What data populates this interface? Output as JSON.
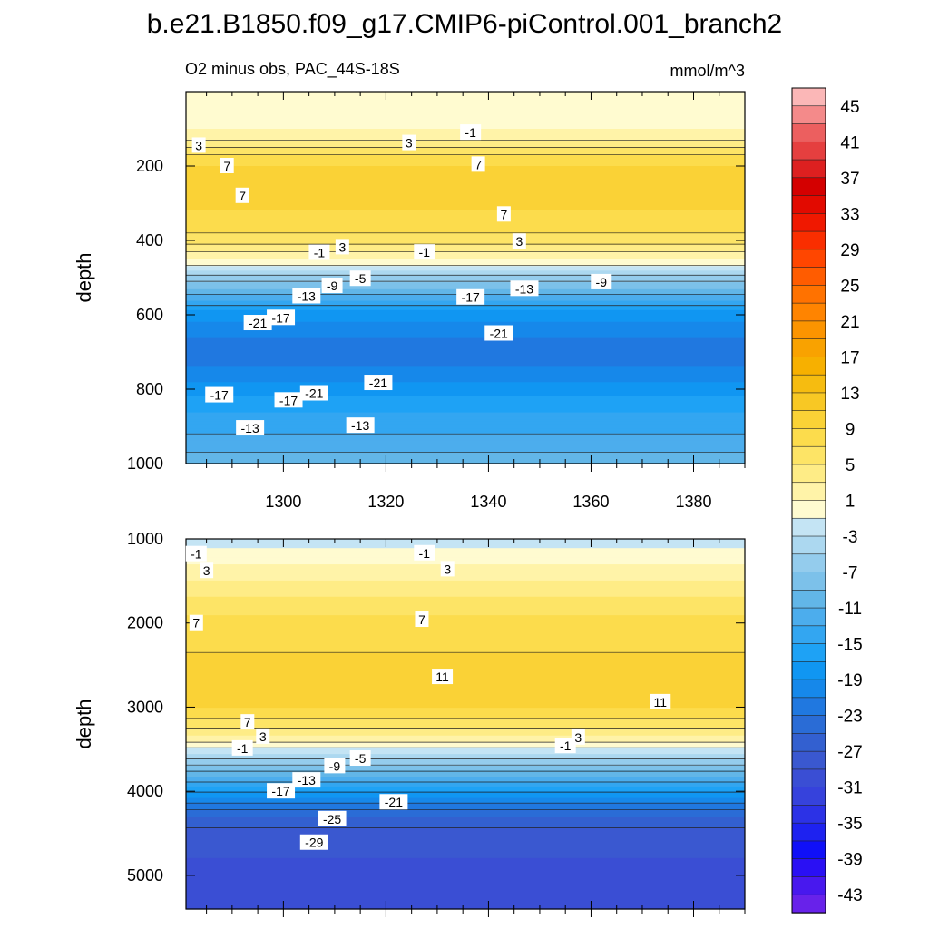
{
  "chart_data": {
    "type": "heatmap",
    "title": "b.e21.B1850.f09_g17.CMIP6-piControl.001_branch2",
    "panels": [
      {
        "name": "upper",
        "subtitle_left": "O2 minus obs, PAC_44S-18S",
        "subtitle_right": "mmol/m^3",
        "ylabel": "depth",
        "xlabel": "",
        "xlim": [
          1281,
          1390
        ],
        "ylim": [
          1000,
          0
        ],
        "x_ticks": [
          1300,
          1320,
          1340,
          1360,
          1380
        ],
        "x_tick_labels": [
          "1300",
          "1320",
          "1340",
          "1360",
          "1380"
        ],
        "y_ticks": [
          200,
          400,
          600,
          800,
          1000
        ],
        "y_tick_labels": [
          "200",
          "400",
          "600",
          "800",
          "1000"
        ],
        "depth_profile": [
          [
            0,
            1
          ],
          [
            60,
            1
          ],
          [
            80,
            -1
          ],
          [
            100,
            1
          ],
          [
            120,
            2
          ],
          [
            140,
            4
          ],
          [
            160,
            6
          ],
          [
            180,
            8
          ],
          [
            200,
            9
          ],
          [
            240,
            10
          ],
          [
            280,
            10
          ],
          [
            320,
            9
          ],
          [
            360,
            8
          ],
          [
            400,
            6
          ],
          [
            420,
            4
          ],
          [
            440,
            2
          ],
          [
            460,
            0
          ],
          [
            480,
            -3
          ],
          [
            500,
            -6
          ],
          [
            530,
            -9
          ],
          [
            560,
            -13
          ],
          [
            590,
            -17
          ],
          [
            620,
            -19
          ],
          [
            660,
            -21
          ],
          [
            700,
            -22
          ],
          [
            740,
            -21
          ],
          [
            780,
            -19
          ],
          [
            820,
            -17
          ],
          [
            860,
            -15
          ],
          [
            900,
            -14
          ],
          [
            940,
            -12
          ],
          [
            1000,
            -10
          ]
        ],
        "contour_labels": [
          {
            "x": 1283.5,
            "y": 145,
            "text": "3"
          },
          {
            "x": 1324.5,
            "y": 138,
            "text": "3"
          },
          {
            "x": 1336.5,
            "y": 110,
            "text": "-1"
          },
          {
            "x": 1289,
            "y": 200,
            "text": "7"
          },
          {
            "x": 1338,
            "y": 196,
            "text": "7"
          },
          {
            "x": 1292,
            "y": 280,
            "text": "7"
          },
          {
            "x": 1343,
            "y": 330,
            "text": "7"
          },
          {
            "x": 1307,
            "y": 433,
            "text": "-1"
          },
          {
            "x": 1311.5,
            "y": 418,
            "text": "3"
          },
          {
            "x": 1327.5,
            "y": 432,
            "text": "-1"
          },
          {
            "x": 1346,
            "y": 403,
            "text": "3"
          },
          {
            "x": 1315,
            "y": 503,
            "text": "-5"
          },
          {
            "x": 1309.5,
            "y": 522,
            "text": "-9"
          },
          {
            "x": 1304.5,
            "y": 550,
            "text": "-13"
          },
          {
            "x": 1299.5,
            "y": 608,
            "text": "-17"
          },
          {
            "x": 1336.5,
            "y": 553,
            "text": "-17"
          },
          {
            "x": 1295,
            "y": 622,
            "text": "-21"
          },
          {
            "x": 1342,
            "y": 650,
            "text": "-21"
          },
          {
            "x": 1306,
            "y": 811,
            "text": "-21"
          },
          {
            "x": 1318.5,
            "y": 783,
            "text": "-21"
          },
          {
            "x": 1287.5,
            "y": 816,
            "text": "-17"
          },
          {
            "x": 1301,
            "y": 830,
            "text": "-17"
          },
          {
            "x": 1293.5,
            "y": 905,
            "text": "-13"
          },
          {
            "x": 1315,
            "y": 898,
            "text": "-13"
          },
          {
            "x": 1347,
            "y": 530,
            "text": "-13"
          },
          {
            "x": 1362,
            "y": 512,
            "text": "-9"
          }
        ]
      },
      {
        "name": "lower",
        "ylabel": "depth",
        "xlim": [
          1281,
          1390
        ],
        "ylim": [
          5400,
          1000
        ],
        "y_ticks": [
          1000,
          2000,
          3000,
          4000,
          5000
        ],
        "y_tick_labels": [
          "1000",
          "2000",
          "3000",
          "4000",
          "5000"
        ],
        "depth_profile": [
          [
            1000,
            -1
          ],
          [
            1100,
            -1
          ],
          [
            1200,
            0
          ],
          [
            1300,
            1
          ],
          [
            1500,
            3
          ],
          [
            1700,
            5
          ],
          [
            1900,
            7
          ],
          [
            2200,
            8
          ],
          [
            2500,
            10
          ],
          [
            2800,
            10
          ],
          [
            3000,
            9
          ],
          [
            3200,
            6
          ],
          [
            3350,
            3
          ],
          [
            3450,
            0
          ],
          [
            3550,
            -3
          ],
          [
            3650,
            -6
          ],
          [
            3800,
            -10
          ],
          [
            3950,
            -15
          ],
          [
            4100,
            -20
          ],
          [
            4300,
            -25
          ],
          [
            4500,
            -28
          ],
          [
            4800,
            -29
          ],
          [
            5100,
            -30
          ],
          [
            5400,
            -31
          ]
        ],
        "contour_labels": [
          {
            "x": 1283,
            "y": 1180,
            "text": "-1"
          },
          {
            "x": 1285,
            "y": 1380,
            "text": "3"
          },
          {
            "x": 1283,
            "y": 2000,
            "text": "7"
          },
          {
            "x": 1327.5,
            "y": 1170,
            "text": "-1"
          },
          {
            "x": 1332,
            "y": 1360,
            "text": "3"
          },
          {
            "x": 1327,
            "y": 1960,
            "text": "7"
          },
          {
            "x": 1331,
            "y": 2640,
            "text": "11"
          },
          {
            "x": 1373.5,
            "y": 2940,
            "text": "11"
          },
          {
            "x": 1293,
            "y": 3180,
            "text": "7"
          },
          {
            "x": 1296,
            "y": 3350,
            "text": "3"
          },
          {
            "x": 1292,
            "y": 3490,
            "text": "-1"
          },
          {
            "x": 1304.5,
            "y": 3870,
            "text": "-13"
          },
          {
            "x": 1299.5,
            "y": 4000,
            "text": "-17"
          },
          {
            "x": 1310,
            "y": 3700,
            "text": "-9"
          },
          {
            "x": 1315,
            "y": 3610,
            "text": "-5"
          },
          {
            "x": 1321.5,
            "y": 4130,
            "text": "-21"
          },
          {
            "x": 1309.5,
            "y": 4330,
            "text": "-25"
          },
          {
            "x": 1306,
            "y": 4610,
            "text": "-29"
          },
          {
            "x": 1355,
            "y": 3460,
            "text": "-1"
          },
          {
            "x": 1357.5,
            "y": 3360,
            "text": "3"
          }
        ]
      }
    ],
    "colorbar": {
      "label_values": [
        "45",
        "41",
        "37",
        "33",
        "29",
        "25",
        "21",
        "17",
        "13",
        "9",
        "5",
        "1",
        "-3",
        "-7",
        "-11",
        "-15",
        "-19",
        "-23",
        "-27",
        "-31",
        "-35",
        "-39",
        "-43"
      ],
      "levels": [
        47,
        45,
        43,
        41,
        39,
        37,
        35,
        33,
        31,
        29,
        27,
        25,
        23,
        21,
        19,
        17,
        15,
        13,
        11,
        9,
        7,
        5,
        3,
        1,
        -1,
        -3,
        -5,
        -7,
        -9,
        -11,
        -13,
        -15,
        -17,
        -19,
        -21,
        -23,
        -25,
        -27,
        -29,
        -31,
        -33,
        -35,
        -37,
        -39,
        -41,
        -43,
        -45
      ],
      "colors": [
        "#fbb7b7",
        "#f48a8a",
        "#ec5f5f",
        "#e53f3f",
        "#dd2020",
        "#d40000",
        "#e20a00",
        "#f01800",
        "#fa2e00",
        "#ff4600",
        "#ff5c00",
        "#ff7200",
        "#ff8400",
        "#fc9400",
        "#f9a200",
        "#f7b000",
        "#f6bc10",
        "#f8c824",
        "#fad236",
        "#fcdc4c",
        "#fde466",
        "#feec86",
        "#fff3a8",
        "#fffbd0",
        "#c4e4f4",
        "#acd8f0",
        "#94cced",
        "#7cc1ea",
        "#62b6e8",
        "#4caded",
        "#33a6f1",
        "#1ea2f5",
        "#1096f2",
        "#1688ea",
        "#2078e0",
        "#2a6cd6",
        "#3360d0",
        "#3a58d0",
        "#3a4ed4",
        "#3642dc",
        "#2c32e6",
        "#1e22f0",
        "#1010f8",
        "#2a10f4",
        "#4818ee",
        "#6822ea"
      ]
    }
  }
}
